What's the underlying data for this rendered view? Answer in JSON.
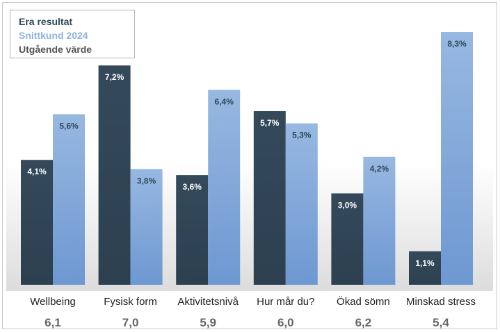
{
  "chart_data": {
    "type": "bar",
    "categories": [
      "Wellbeing",
      "Fysisk form",
      "Aktivitetsnivå",
      "Hur mår du?",
      "Ökad sömn",
      "Minskad stress"
    ],
    "series": [
      {
        "name": "Era resultat",
        "color": "#2f4858",
        "values": [
          4.1,
          7.2,
          3.6,
          5.7,
          3.0,
          1.1
        ],
        "labels": [
          "4,1%",
          "7,2%",
          "3,6%",
          "5,7%",
          "3,0%",
          "1,1%"
        ]
      },
      {
        "name": "Snittkund 2024",
        "color": "#8fb2de",
        "values": [
          5.6,
          3.8,
          6.4,
          5.3,
          4.2,
          8.3
        ],
        "labels": [
          "5,6%",
          "3,8%",
          "6,4%",
          "5,3%",
          "4,2%",
          "8,3%"
        ]
      }
    ],
    "legend_extra": {
      "name": "Utgående värde",
      "color": "#555555"
    },
    "bottom_values": [
      "6,1",
      "7,0",
      "5,9",
      "6,0",
      "6,2",
      "5,4"
    ],
    "ylim": [
      0,
      8.3
    ],
    "grid": false,
    "legend_position": "top-left"
  }
}
